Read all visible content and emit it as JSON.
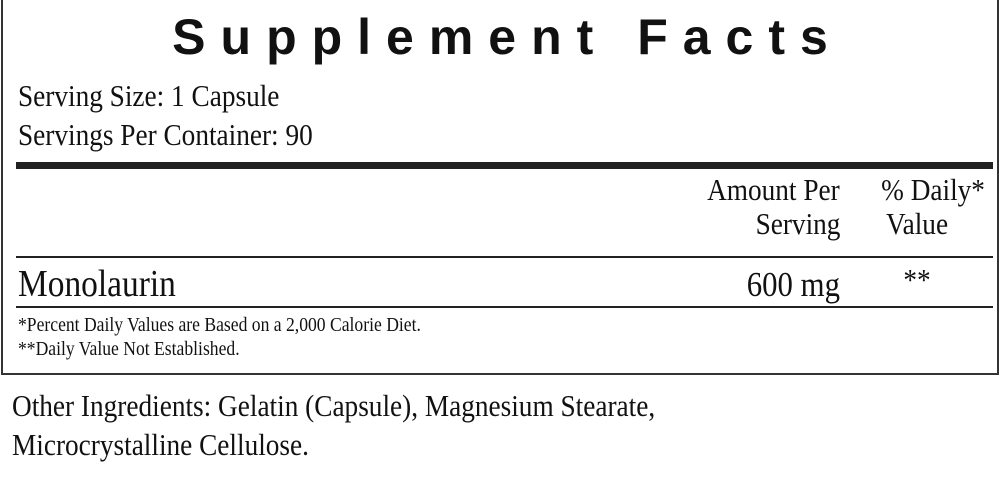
{
  "title": "Supplement Facts",
  "serving_size": "Serving Size: 1 Capsule",
  "servings_per_container": "Servings Per Container: 90",
  "header": {
    "amount_line1": "Amount Per",
    "amount_line2": "Serving",
    "dv_line1": "% Daily*",
    "dv_line2": "Value"
  },
  "nutrients": [
    {
      "name": "Monolaurin",
      "amount": "600 mg",
      "dv": "**"
    }
  ],
  "footnotes": [
    "*Percent Daily Values are Based on a 2,000 Calorie Diet.",
    "**Daily Value Not Established."
  ],
  "other_ingredients": [
    "Other Ingredients: Gelatin (Capsule), Magnesium Stearate,",
    "Microcrystalline Cellulose."
  ]
}
